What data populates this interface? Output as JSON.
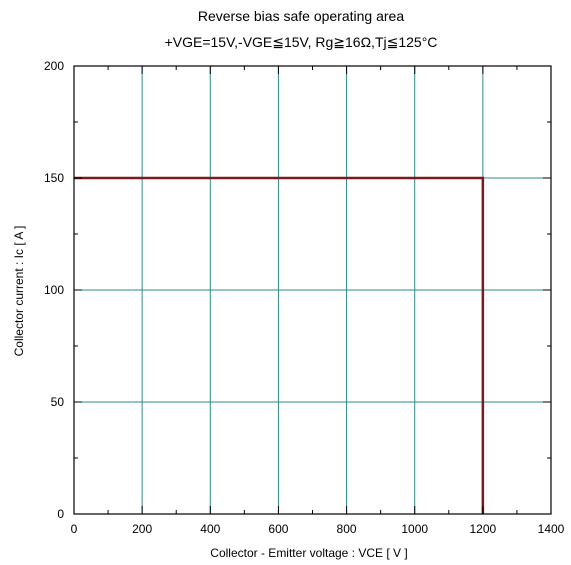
{
  "chart_data": {
    "type": "line",
    "title": "Reverse bias safe operating area",
    "subtitle": "+VGE=15V,-VGE≦15V, Rg≧16Ω,Tj≦125°C",
    "xlabel": "Collector - Emitter voltage  :  VCE  [ V ]",
    "ylabel": "Collector current  : Ic  [ A ]",
    "xlim": [
      0,
      1400
    ],
    "ylim": [
      0,
      200
    ],
    "x_ticks": [
      0,
      200,
      400,
      600,
      800,
      1000,
      1200,
      1400
    ],
    "y_ticks": [
      0,
      50,
      100,
      150,
      200
    ],
    "x_minor_step": 100,
    "y_minor_step": 25,
    "grid": true,
    "series": [
      {
        "x": [
          0,
          1200,
          1200
        ],
        "y": [
          150,
          150,
          0
        ]
      }
    ],
    "colors": {
      "series": "#7a1a1a",
      "grid": "#2e8b8b",
      "axes": "#000000"
    }
  }
}
